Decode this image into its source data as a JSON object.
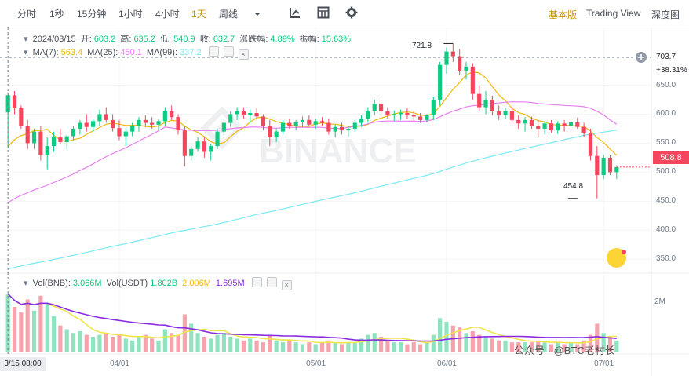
{
  "toolbar": {
    "intervals": [
      "分时",
      "1秒",
      "15分钟",
      "1小时",
      "4小时",
      "1天",
      "周线"
    ],
    "active_interval": "1天",
    "views": [
      "基本版",
      "Trading View",
      "深度图"
    ],
    "active_view": "基本版"
  },
  "info": {
    "date": "2024/03/15",
    "open_label": "开:",
    "open": "603.2",
    "high_label": "高:",
    "high": "635.2",
    "low_label": "低:",
    "low": "540.9",
    "close_label": "收:",
    "close": "632.7",
    "change_label": "涨跌幅:",
    "change": "4.89%",
    "amplitude_label": "振幅:",
    "amplitude": "15.63%"
  },
  "ma": {
    "ma7_label": "MA(7):",
    "ma7": "563.4",
    "ma25_label": "MA(25):",
    "ma25": "450.1",
    "ma99_label": "MA(99):",
    "ma99": "337.2"
  },
  "vol": {
    "bnb_label": "Vol(BNB):",
    "bnb": "3.066M",
    "usdt_label": "Vol(USDT)",
    "usdt": "1.802B",
    "ma_a": "2.006M",
    "ma_b": "1.695M"
  },
  "cursor": {
    "price": "703.7",
    "pct": "+38.31%",
    "date": "3/15 08:00"
  },
  "current_price": "508.8",
  "watermark": "BINANCE",
  "footer_text": "公众号 · @BTC老村长",
  "colors": {
    "up": "#0ecb81",
    "down": "#f6465d",
    "ma7": "#f0b90b",
    "ma25": "#e77ff0",
    "ma99": "#79eaf2",
    "vol_ma_a": "#f0e54b",
    "vol_ma_b": "#8a2be2",
    "accent": "#c99400"
  },
  "chart_data": {
    "type": "candlestick",
    "y_ticks": [
      "650.0",
      "600.0",
      "550.0",
      "500.0",
      "450.0",
      "400.0",
      "350.0"
    ],
    "y_range": [
      330,
      740
    ],
    "x_ticks": [
      "04/01",
      "05/01",
      "06/01",
      "07/01"
    ],
    "high_annotation": "721.8",
    "low_annotation": "454.8",
    "vol_tick": "2M",
    "candles": [
      [
        603.2,
        635.2,
        540.9,
        632.7
      ],
      [
        632.7,
        640,
        600,
        610
      ],
      [
        610,
        615,
        575,
        580
      ],
      [
        580,
        590,
        540,
        550
      ],
      [
        550,
        575,
        540,
        570
      ],
      [
        570,
        580,
        520,
        530
      ],
      [
        530,
        560,
        505,
        545
      ],
      [
        545,
        570,
        535,
        560
      ],
      [
        560,
        575,
        548,
        552
      ],
      [
        552,
        565,
        540,
        562
      ],
      [
        562,
        580,
        555,
        575
      ],
      [
        575,
        590,
        565,
        585
      ],
      [
        585,
        600,
        570,
        578
      ],
      [
        578,
        592,
        570,
        588
      ],
      [
        588,
        608,
        580,
        600
      ],
      [
        600,
        612,
        585,
        590
      ],
      [
        590,
        600,
        570,
        576
      ],
      [
        576,
        590,
        555,
        562
      ],
      [
        562,
        575,
        545,
        570
      ],
      [
        570,
        585,
        562,
        580
      ],
      [
        580,
        595,
        570,
        590
      ],
      [
        590,
        598,
        578,
        585
      ],
      [
        585,
        595,
        575,
        582
      ],
      [
        582,
        592,
        572,
        588
      ],
      [
        588,
        612,
        580,
        605
      ],
      [
        605,
        615,
        590,
        595
      ],
      [
        595,
        600,
        565,
        572
      ],
      [
        572,
        580,
        510,
        528
      ],
      [
        528,
        545,
        520,
        540
      ],
      [
        540,
        560,
        535,
        553
      ],
      [
        553,
        560,
        525,
        535
      ],
      [
        535,
        548,
        520,
        545
      ],
      [
        545,
        575,
        540,
        570
      ],
      [
        570,
        590,
        560,
        585
      ],
      [
        585,
        605,
        578,
        600
      ],
      [
        600,
        612,
        590,
        605
      ],
      [
        605,
        612,
        592,
        598
      ],
      [
        598,
        608,
        585,
        602
      ],
      [
        602,
        610,
        590,
        596
      ],
      [
        596,
        600,
        572,
        580
      ],
      [
        580,
        590,
        545,
        560
      ],
      [
        560,
        575,
        552,
        570
      ],
      [
        570,
        590,
        565,
        585
      ],
      [
        585,
        592,
        575,
        580
      ],
      [
        580,
        590,
        572,
        586
      ],
      [
        586,
        596,
        578,
        590
      ],
      [
        590,
        598,
        580,
        582
      ],
      [
        582,
        592,
        575,
        588
      ],
      [
        588,
        595,
        580,
        585
      ],
      [
        585,
        592,
        565,
        570
      ],
      [
        570,
        582,
        560,
        578
      ],
      [
        578,
        585,
        565,
        572
      ],
      [
        572,
        580,
        562,
        575
      ],
      [
        575,
        590,
        570,
        585
      ],
      [
        585,
        598,
        578,
        592
      ],
      [
        592,
        612,
        585,
        605
      ],
      [
        605,
        625,
        598,
        618
      ],
      [
        618,
        625,
        600,
        605
      ],
      [
        605,
        612,
        592,
        598
      ],
      [
        598,
        606,
        588,
        600
      ],
      [
        600,
        608,
        590,
        602
      ],
      [
        602,
        610,
        592,
        598
      ],
      [
        598,
        606,
        588,
        596
      ],
      [
        596,
        602,
        585,
        590
      ],
      [
        590,
        600,
        586,
        598
      ],
      [
        598,
        630,
        590,
        625
      ],
      [
        625,
        690,
        615,
        685
      ],
      [
        685,
        715,
        670,
        708
      ],
      [
        708,
        721.8,
        690,
        700
      ],
      [
        700,
        712,
        668,
        675
      ],
      [
        675,
        690,
        660,
        682
      ],
      [
        682,
        688,
        625,
        635
      ],
      [
        635,
        650,
        605,
        612
      ],
      [
        612,
        640,
        600,
        625
      ],
      [
        625,
        632,
        598,
        605
      ],
      [
        605,
        615,
        590,
        598
      ],
      [
        598,
        610,
        592,
        605
      ],
      [
        605,
        612,
        585,
        590
      ],
      [
        590,
        598,
        575,
        584
      ],
      [
        584,
        595,
        570,
        590
      ],
      [
        590,
        596,
        575,
        580
      ],
      [
        580,
        590,
        560,
        575
      ],
      [
        575,
        588,
        565,
        584
      ],
      [
        584,
        590,
        568,
        572
      ],
      [
        572,
        588,
        566,
        584
      ],
      [
        584,
        590,
        570,
        580
      ],
      [
        580,
        590,
        572,
        586
      ],
      [
        586,
        594,
        575,
        578
      ],
      [
        578,
        585,
        560,
        568
      ],
      [
        568,
        575,
        520,
        528
      ],
      [
        528,
        545,
        454.8,
        495
      ],
      [
        495,
        530,
        488,
        525
      ],
      [
        525,
        530,
        495,
        500
      ],
      [
        500,
        512,
        488,
        508.8
      ]
    ],
    "volumes": [
      3.1,
      2.4,
      2.1,
      2.8,
      2.2,
      3.0,
      2.6,
      1.9,
      1.4,
      1.2,
      1.0,
      1.1,
      0.9,
      0.8,
      0.9,
      1.0,
      0.8,
      0.9,
      0.7,
      0.6,
      0.8,
      0.9,
      0.7,
      0.6,
      1.2,
      1.0,
      0.9,
      2.0,
      1.5,
      1.0,
      0.8,
      0.7,
      0.9,
      1.0,
      0.8,
      0.7,
      0.6,
      0.7,
      0.6,
      0.5,
      0.9,
      0.6,
      0.5,
      0.6,
      0.5,
      0.4,
      0.5,
      0.4,
      0.5,
      0.6,
      0.5,
      0.4,
      0.5,
      0.5,
      0.7,
      0.9,
      1.0,
      0.8,
      0.6,
      0.5,
      0.5,
      0.4,
      0.5,
      0.4,
      0.5,
      0.9,
      1.8,
      1.6,
      1.4,
      1.3,
      1.0,
      1.1,
      0.9,
      0.8,
      0.7,
      0.6,
      0.6,
      0.5,
      0.5,
      0.5,
      0.5,
      0.6,
      0.5,
      0.4,
      0.5,
      0.4,
      0.5,
      0.4,
      0.6,
      0.9,
      1.5,
      1.0,
      0.8,
      0.6
    ]
  }
}
